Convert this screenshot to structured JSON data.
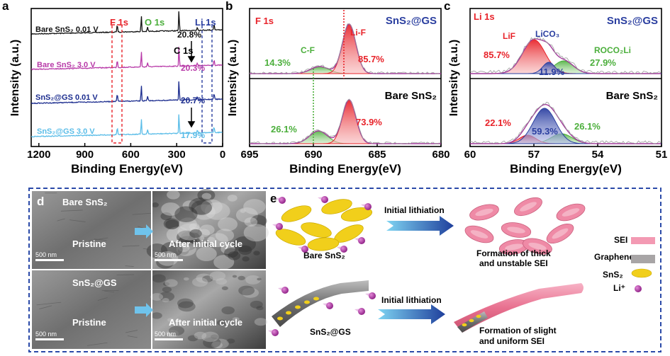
{
  "panels": {
    "a": {
      "letter": "a",
      "ylabel": "Intensity (a.u.)",
      "xlabel": "Binding Energy(eV)",
      "xticks": [
        "1200",
        "900",
        "600",
        "300",
        "0"
      ],
      "traces": [
        {
          "label": "Bare SnS₂ 0.01 V",
          "color": "#111111",
          "pct": "20.8%"
        },
        {
          "label": "Bare SnS₂ 3.0 V",
          "color": "#b83aa8",
          "pct": "20.3%"
        },
        {
          "label": "SnS₂@GS 0.01 V",
          "color": "#1c2d8f",
          "pct": "20.7%"
        },
        {
          "label": "SnS₂@GS 3.0 V",
          "color": "#5bbde8",
          "pct": "17.9%"
        }
      ],
      "peaks": {
        "f1s": "F 1s",
        "o1s": "O 1s",
        "c1s": "C 1s",
        "li1s": "Li 1s"
      }
    },
    "b": {
      "letter": "b",
      "title": "F 1s",
      "ylabel": "Intensity (a.u.)",
      "xlabel": "Binding Energy(eV)",
      "xticks": [
        "695",
        "690",
        "685",
        "680"
      ],
      "top": {
        "sample": "SnS₂@GS",
        "lif": "Li-F",
        "cf": "C-F",
        "lif_pct": "85.7%",
        "cf_pct": "14.3%"
      },
      "bottom": {
        "sample": "Bare SnS₂",
        "lif_pct": "73.9%",
        "cf_pct": "26.1%"
      }
    },
    "c": {
      "letter": "c",
      "title": "Li 1s",
      "ylabel": "Intensity (a.u.)",
      "xlabel": "Binding Energy(eV)",
      "xticks": [
        "60",
        "57",
        "54",
        "51"
      ],
      "top": {
        "sample": "SnS₂@GS",
        "lif": "LiF",
        "lico3": "LiCO₃",
        "roco2li": "ROCO₂Li",
        "lif_pct": "85.7%",
        "lico3_pct": "11.9%",
        "roco2li_pct": "27.9%"
      },
      "bottom": {
        "sample": "Bare SnS₂",
        "lif_pct": "22.1%",
        "lico3_pct": "59.3%",
        "roco2li_pct": "26.1%"
      }
    },
    "d": {
      "letter": "d",
      "row1": "Bare SnS₂",
      "row2": "SnS₂@GS",
      "pristine": "Pristine",
      "after": "After initial cycle",
      "scale": "500 nm"
    },
    "e": {
      "letter": "e",
      "arrow": "Initial lithiation",
      "bare": "Bare SnS₂",
      "gs": "SnS₂@GS",
      "thick1": "Formation of thick",
      "thick2": "and unstable SEI",
      "slight1": "Formation of slight",
      "slight2": "and uniform SEI",
      "legend": {
        "sei": "SEI",
        "graphene": "Graphene",
        "sns2": "SnS₂",
        "li": "Li⁺"
      }
    }
  },
  "colors": {
    "red": "#e8232a",
    "green": "#4caf3c",
    "blue": "#2b3fa0",
    "purple": "#b83aa8",
    "lightblue": "#5bbde8",
    "frame": "#2b4aa8"
  },
  "chart_data": [
    {
      "type": "line",
      "title": "",
      "xlabel": "Binding Energy(eV)",
      "ylabel": "Intensity (a.u.)",
      "xlim": [
        1250,
        0
      ],
      "series": [
        {
          "name": "Bare SnS₂ 0.01 V",
          "annotation": "20.8%"
        },
        {
          "name": "Bare SnS₂ 3.0 V",
          "annotation": "20.3%"
        },
        {
          "name": "SnS₂@GS 0.01 V",
          "annotation": "20.7%"
        },
        {
          "name": "SnS₂@GS 3.0 V",
          "annotation": "17.9%"
        }
      ]
    },
    {
      "type": "line",
      "title": "F 1s",
      "xlabel": "Binding Energy(eV)",
      "ylabel": "Intensity (a.u.)",
      "xlim": [
        695,
        680
      ],
      "components": {
        "SnS₂@GS": {
          "Li-F": 85.7,
          "C-F": 14.3
        },
        "Bare SnS₂": {
          "Li-F": 73.9,
          "C-F": 26.1
        }
      },
      "peak_positions": {
        "Li-F": 687.2,
        "C-F": 689.5
      }
    },
    {
      "type": "line",
      "title": "Li 1s",
      "xlabel": "Binding Energy(eV)",
      "ylabel": "Intensity (a.u.)",
      "xlim": [
        60,
        51
      ],
      "components": {
        "SnS₂@GS": {
          "LiF": 85.7,
          "LiCO₃": 11.9,
          "ROCO₂Li": 27.9
        },
        "Bare SnS₂": {
          "LiF": 22.1,
          "LiCO₃": 59.3,
          "ROCO₂Li": 26.1
        }
      },
      "peak_positions": {
        "LiF": 57.0,
        "LiCO₃": 56.3,
        "ROCO₂Li": 55.6
      }
    }
  ]
}
